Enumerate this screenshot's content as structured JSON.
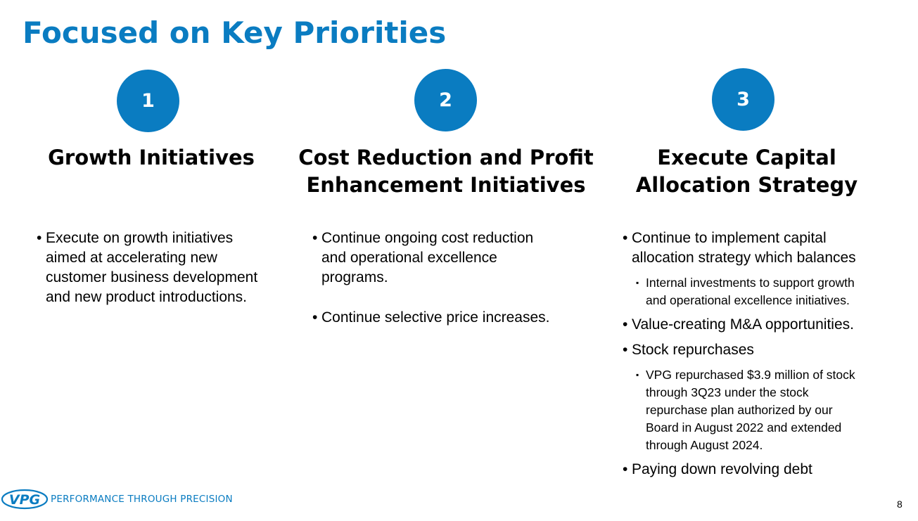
{
  "slide": {
    "title": "Focused on Key Priorities",
    "accent_color": "#0a7cc1",
    "page_number": "8"
  },
  "columns": [
    {
      "number": "1",
      "heading_lines": [
        "Growth Initiatives"
      ],
      "bullets": [
        {
          "lines": [
            "Execute on growth initiatives",
            "aimed at accelerating new",
            "customer business development",
            "and new product introductions."
          ]
        }
      ]
    },
    {
      "number": "2",
      "heading_lines": [
        "Cost Reduction and Profit",
        "Enhancement Initiatives"
      ],
      "bullets": [
        {
          "lines": [
            "Continue ongoing cost reduction",
            "and operational excellence",
            "programs."
          ]
        },
        {
          "lines": [
            "Continue selective price increases."
          ]
        }
      ]
    },
    {
      "number": "3",
      "heading_lines": [
        "Execute Capital",
        "Allocation Strategy"
      ],
      "bullets": [
        {
          "lines": [
            "Continue to implement capital",
            "allocation strategy which balances"
          ],
          "sub": [
            {
              "lines": [
                "Internal investments to support growth",
                "and operational excellence initiatives."
              ]
            }
          ]
        },
        {
          "lines": [
            "Value-creating M&A opportunities."
          ]
        },
        {
          "lines": [
            "Stock repurchases"
          ],
          "sub": [
            {
              "lines": [
                "VPG repurchased $3.9 million of stock",
                "through 3Q23 under the stock",
                "repurchase plan authorized by our",
                "Board in August 2022 and extended",
                "through August 2024."
              ]
            }
          ]
        },
        {
          "lines": [
            "Paying down revolving debt"
          ]
        }
      ]
    }
  ],
  "footer": {
    "logo_text": "VPG",
    "tagline": "PERFORMANCE THROUGH PRECISION",
    "logo_icon": "vpg-logo-icon"
  }
}
